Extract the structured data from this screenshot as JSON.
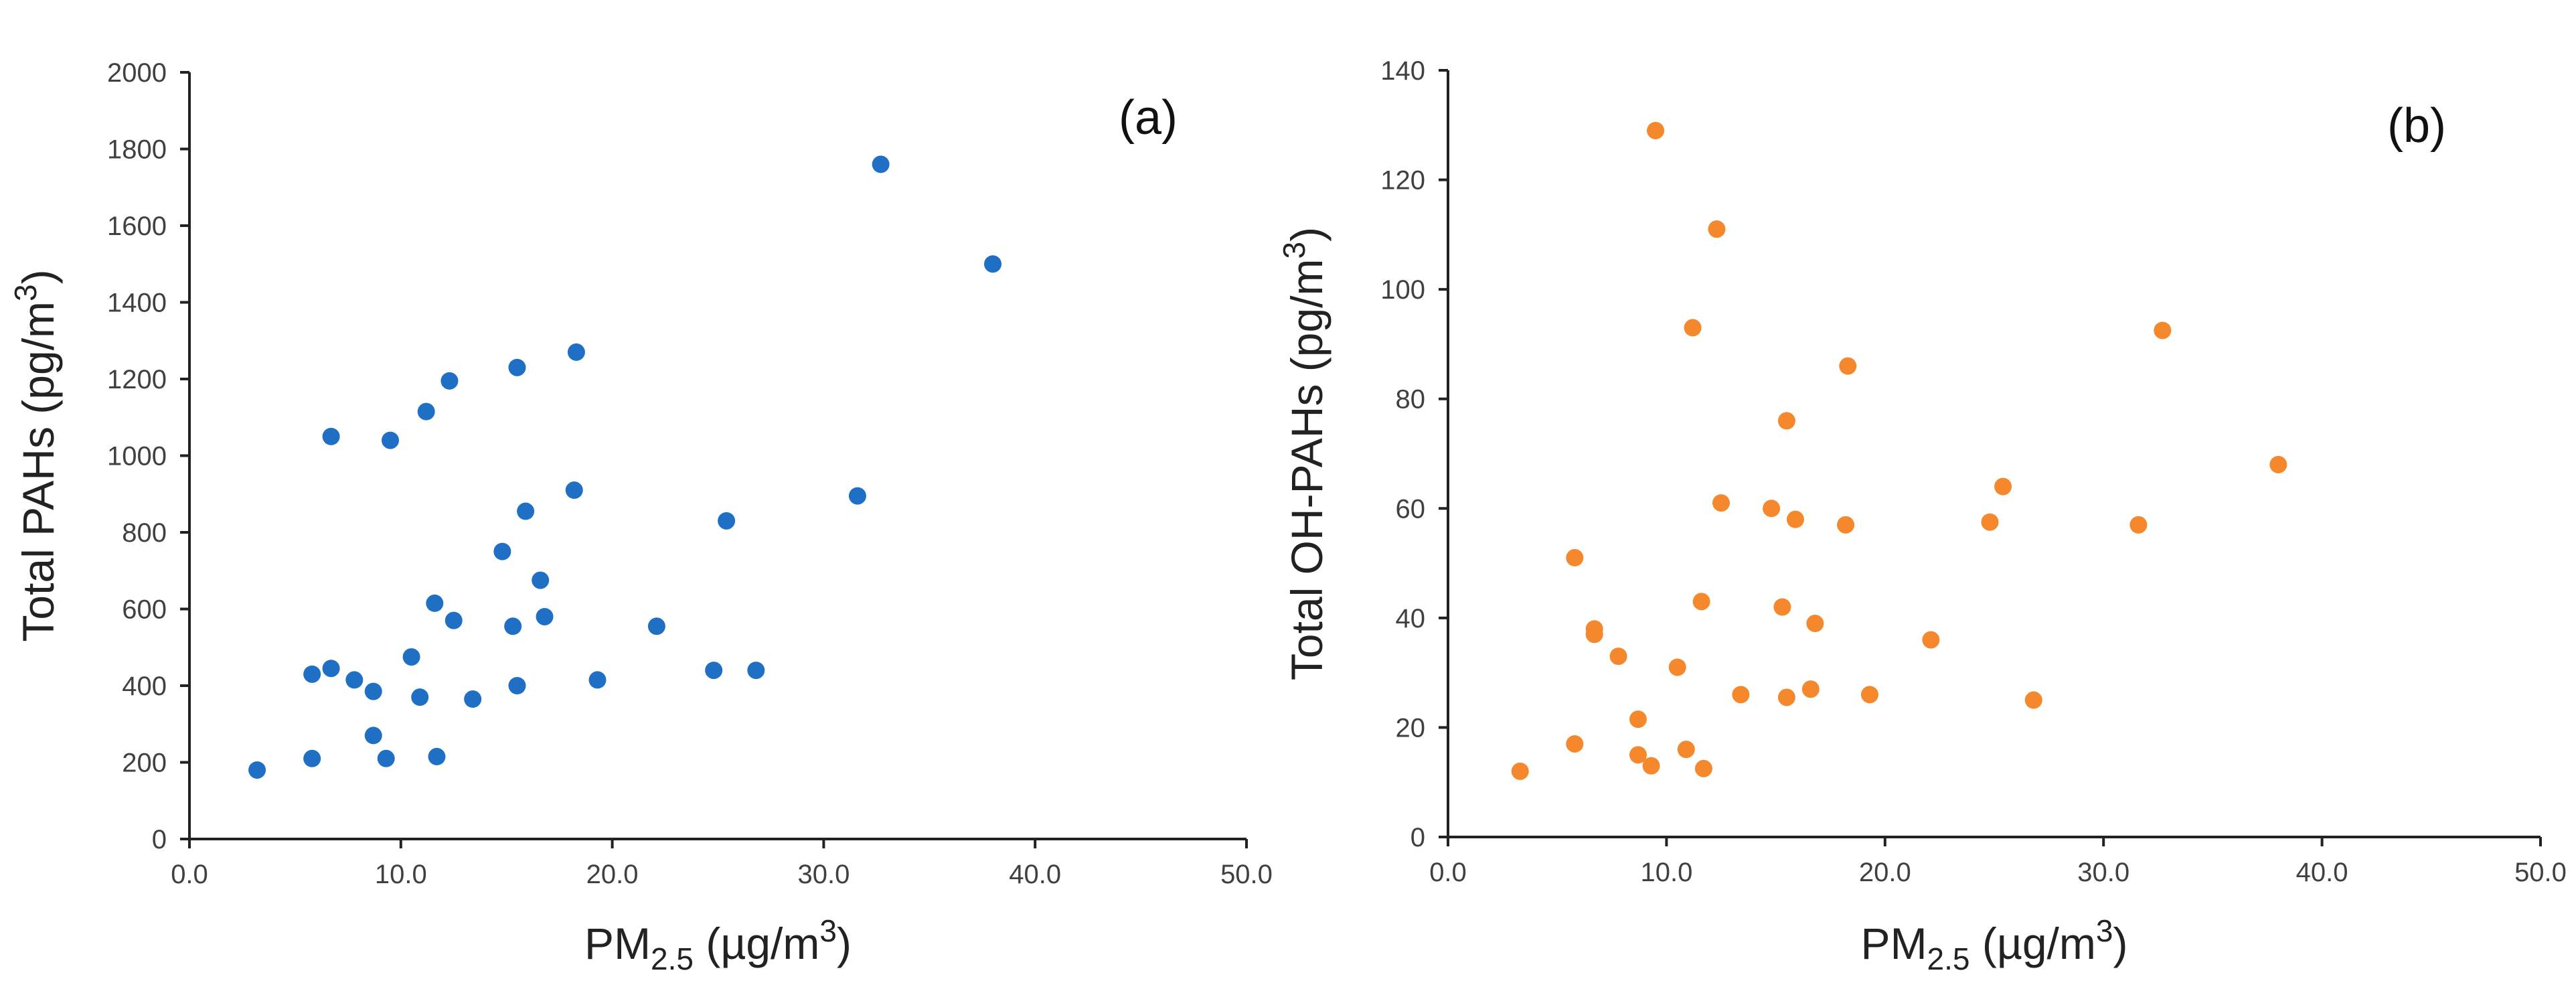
{
  "chart_data": [
    {
      "type": "scatter",
      "panel_label": "(a)",
      "xlabel": {
        "main": "PM",
        "sub": "2.5",
        "rest": " (µg/m",
        "sup": "3",
        "close": ")"
      },
      "ylabel": {
        "main": "Total PAHs (pg/m",
        "sup": "3",
        "close": ")"
      },
      "xlim": [
        0,
        50
      ],
      "ylim": [
        0,
        2000
      ],
      "x_ticks": [
        "0.0",
        "10.0",
        "20.0",
        "30.0",
        "40.0",
        "50.0"
      ],
      "y_ticks": [
        "0",
        "200",
        "400",
        "600",
        "800",
        "1000",
        "1200",
        "1400",
        "1600",
        "1800",
        "2000"
      ],
      "color": "#1f6fc5",
      "grid": false,
      "points": [
        [
          3.2,
          180
        ],
        [
          5.8,
          210
        ],
        [
          5.8,
          430
        ],
        [
          6.7,
          445
        ],
        [
          6.7,
          1050
        ],
        [
          7.8,
          415
        ],
        [
          8.7,
          385
        ],
        [
          8.7,
          270
        ],
        [
          9.3,
          210
        ],
        [
          9.5,
          1040
        ],
        [
          10.5,
          475
        ],
        [
          10.9,
          370
        ],
        [
          11.2,
          1115
        ],
        [
          11.6,
          615
        ],
        [
          11.7,
          215
        ],
        [
          12.3,
          1195
        ],
        [
          12.5,
          570
        ],
        [
          13.4,
          365
        ],
        [
          14.8,
          750
        ],
        [
          15.3,
          555
        ],
        [
          15.5,
          1230
        ],
        [
          15.5,
          400
        ],
        [
          15.9,
          855
        ],
        [
          16.6,
          675
        ],
        [
          16.8,
          580
        ],
        [
          18.2,
          910
        ],
        [
          18.3,
          1270
        ],
        [
          19.3,
          415
        ],
        [
          22.1,
          555
        ],
        [
          24.8,
          440
        ],
        [
          25.4,
          830
        ],
        [
          26.8,
          440
        ],
        [
          31.6,
          895
        ],
        [
          32.7,
          1760
        ],
        [
          38.0,
          1500
        ]
      ]
    },
    {
      "type": "scatter",
      "panel_label": "(b)",
      "xlabel": {
        "main": "PM",
        "sub": "2.5",
        "rest": " (µg/m",
        "sup": "3",
        "close": ")"
      },
      "ylabel": {
        "main": "Total OH-PAHs (pg/m",
        "sup": "3",
        "close": ")"
      },
      "xlim": [
        0,
        50
      ],
      "ylim": [
        0,
        140
      ],
      "x_ticks": [
        "0.0",
        "10.0",
        "20.0",
        "30.0",
        "40.0",
        "50.0"
      ],
      "y_ticks": [
        "0",
        "20",
        "40",
        "60",
        "80",
        "100",
        "120",
        "140"
      ],
      "color": "#f5872d",
      "grid": false,
      "points": [
        [
          3.3,
          12
        ],
        [
          5.8,
          51
        ],
        [
          5.8,
          17
        ],
        [
          6.7,
          38
        ],
        [
          6.7,
          37
        ],
        [
          7.8,
          33
        ],
        [
          8.7,
          21.5
        ],
        [
          8.7,
          15
        ],
        [
          9.3,
          13
        ],
        [
          9.5,
          129
        ],
        [
          10.5,
          31
        ],
        [
          10.9,
          16
        ],
        [
          11.2,
          93
        ],
        [
          11.6,
          43
        ],
        [
          11.7,
          12.5
        ],
        [
          12.3,
          111
        ],
        [
          12.5,
          61
        ],
        [
          13.4,
          26
        ],
        [
          14.8,
          60
        ],
        [
          15.3,
          42
        ],
        [
          15.5,
          76
        ],
        [
          15.5,
          25.5
        ],
        [
          15.9,
          58
        ],
        [
          16.6,
          27
        ],
        [
          16.8,
          39
        ],
        [
          18.2,
          57
        ],
        [
          18.3,
          86
        ],
        [
          19.3,
          26
        ],
        [
          22.1,
          36
        ],
        [
          24.8,
          57.5
        ],
        [
          25.4,
          64
        ],
        [
          26.8,
          25
        ],
        [
          31.6,
          57
        ],
        [
          32.7,
          92.5
        ],
        [
          38.0,
          68
        ]
      ]
    }
  ]
}
